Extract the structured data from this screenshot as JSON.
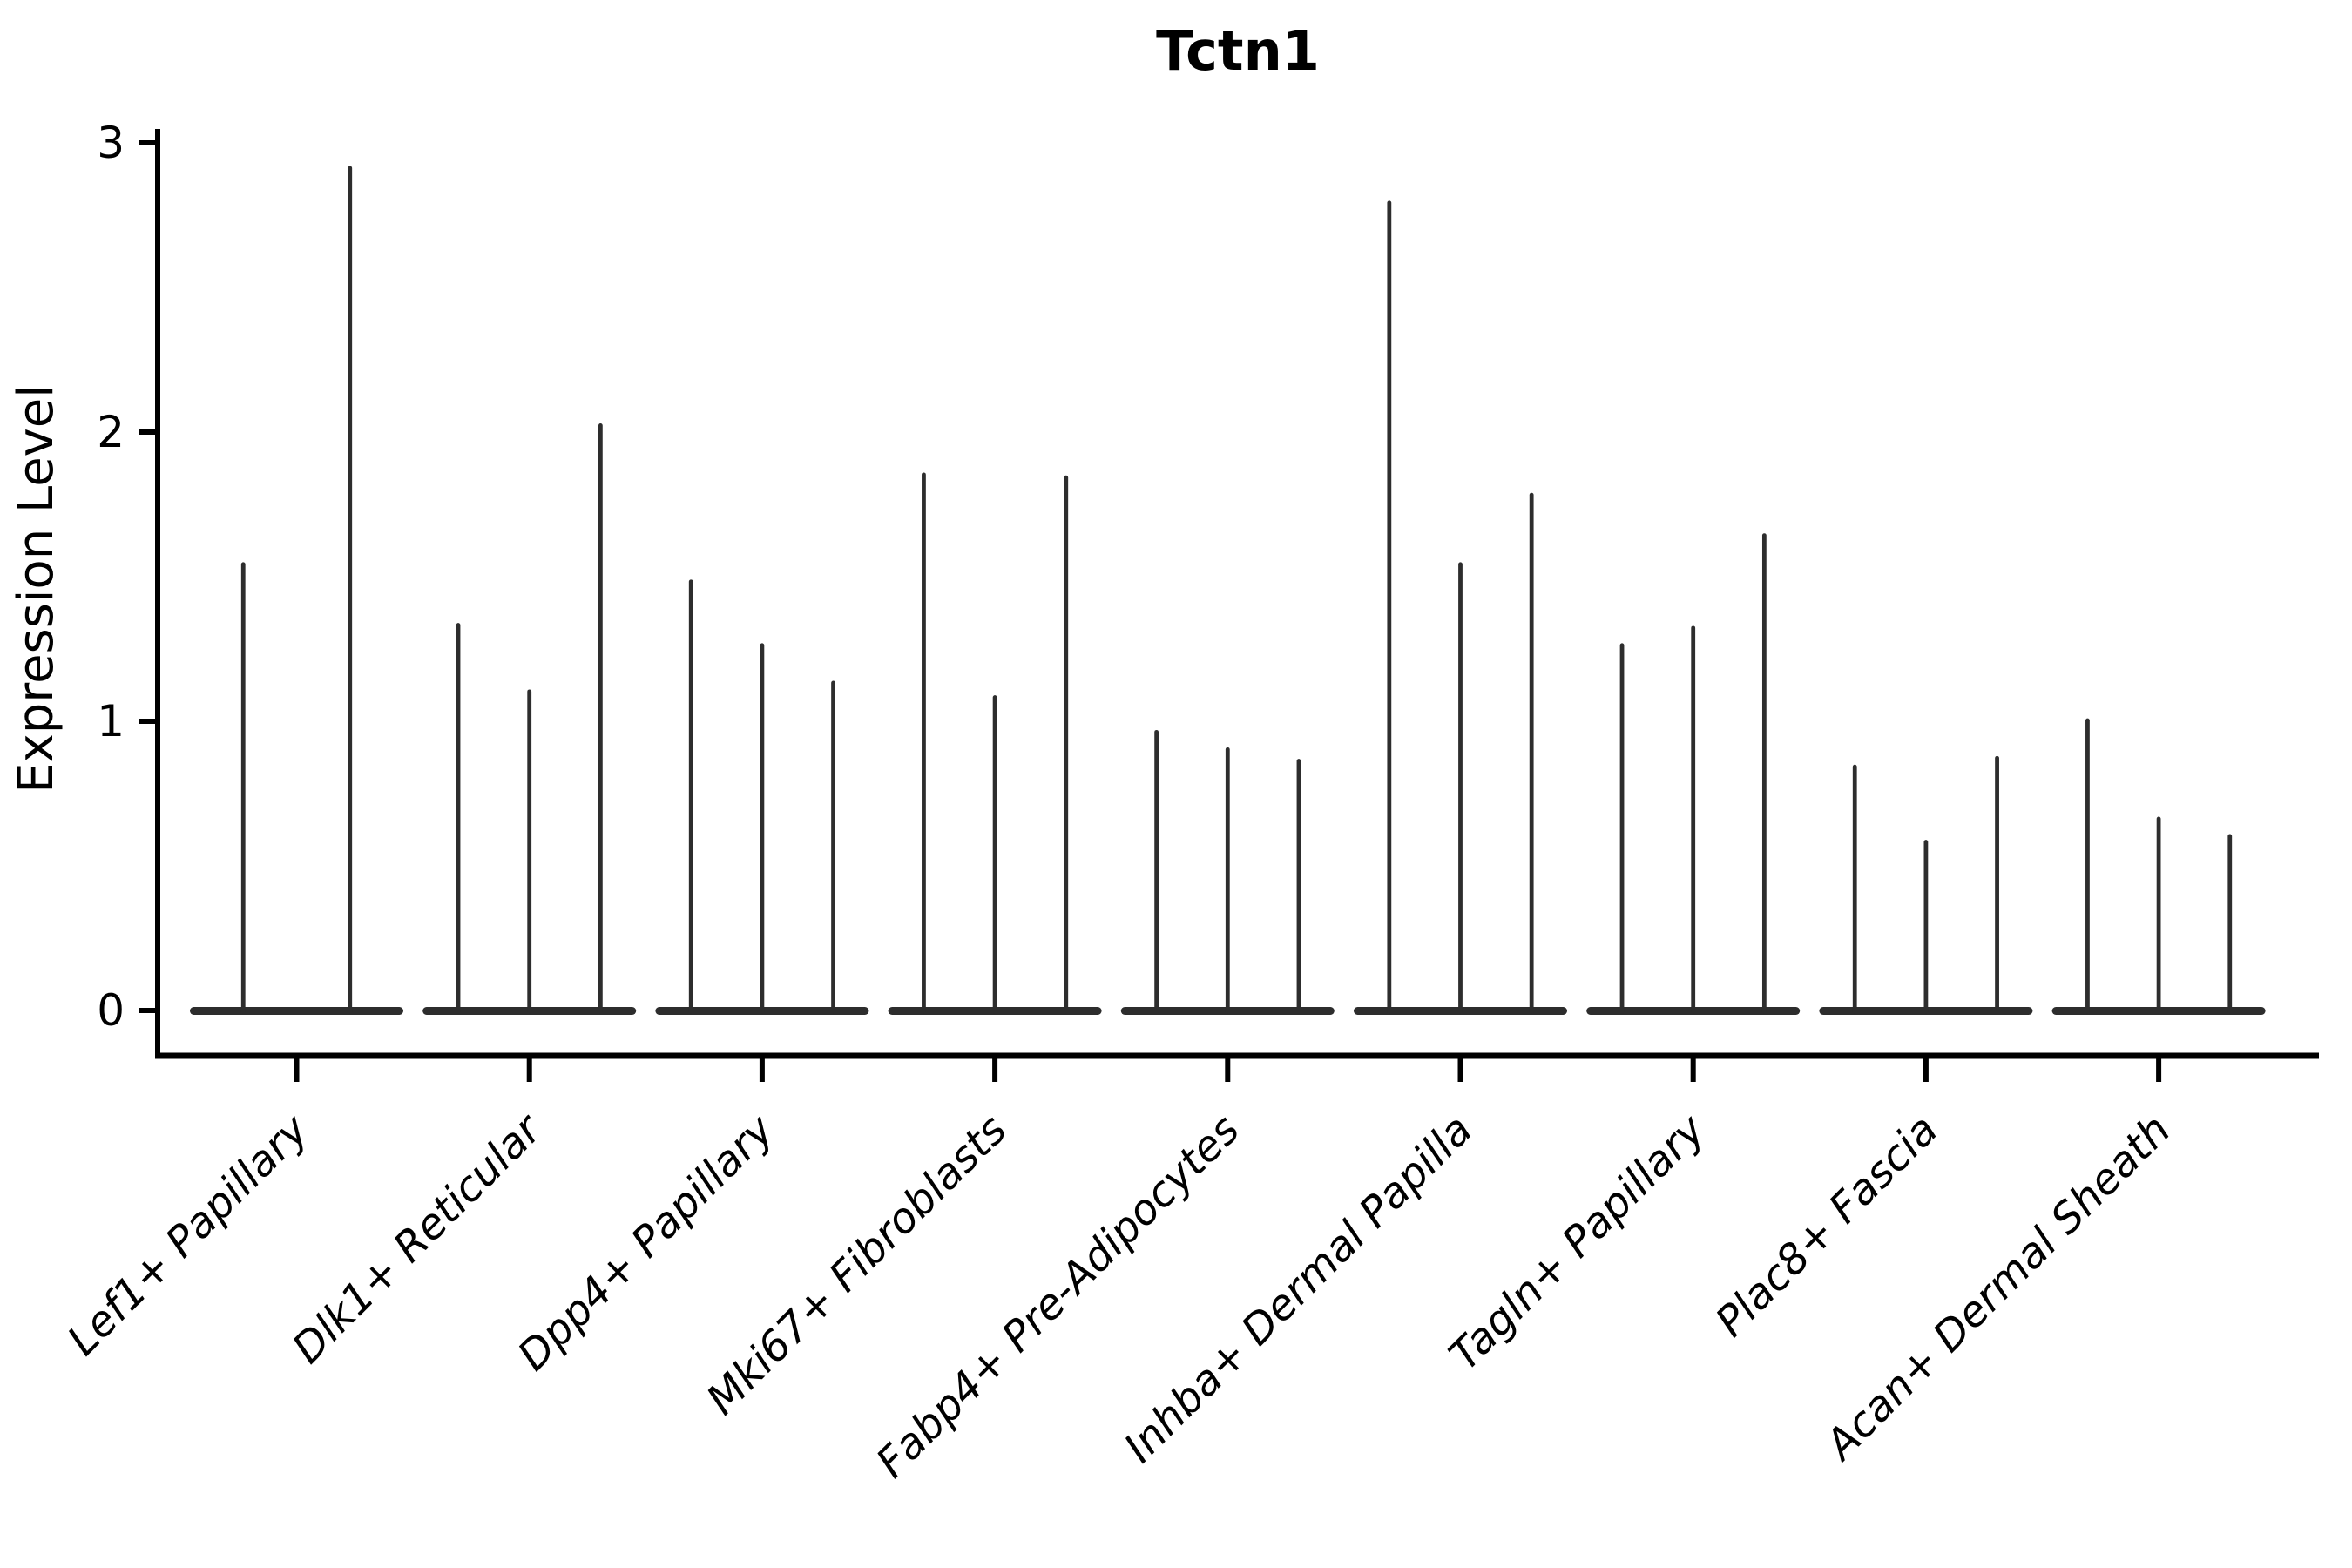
{
  "title": "Tctn1",
  "ylabel": "Expression Level",
  "colors": {
    "background": "#ffffff",
    "axis": "#000000",
    "violin": "#2d2d2d",
    "text": "#000000"
  },
  "chart_data": {
    "type": "violin",
    "title": "Tctn1",
    "xlabel": "",
    "ylabel": "Expression Level",
    "yticks": [
      0,
      1,
      2,
      3
    ],
    "ylim": [
      -0.17,
      3.1
    ],
    "grid": false,
    "legend": "none",
    "note": "Each category holds thin spike-like violins (flat mass at 0 with a narrow spike to the max expression value).",
    "categories": [
      "Lef1+ Papillary",
      "Dlk1+ Reticular",
      "Dpp4+ Papillary",
      "Mki67+ Fibroblasts",
      "Fabp4+ Pre-Adipocytes",
      "Inhba+ Dermal Papilla",
      "Tagln+ Papillary",
      "Plac8+ Fascia",
      "Acan+ Dermal Sheath"
    ],
    "groups": [
      {
        "category": "Lef1+ Papillary",
        "violin_peaks": [
          1.55,
          2.92
        ]
      },
      {
        "category": "Dlk1+ Reticular",
        "violin_peaks": [
          1.34,
          1.11,
          2.03
        ]
      },
      {
        "category": "Dpp4+ Papillary",
        "violin_peaks": [
          1.49,
          1.27,
          1.14
        ]
      },
      {
        "category": "Mki67+ Fibroblasts",
        "violin_peaks": [
          1.86,
          1.09,
          1.85
        ]
      },
      {
        "category": "Fabp4+ Pre-Adipocytes",
        "violin_peaks": [
          0.97,
          0.91,
          0.87
        ]
      },
      {
        "category": "Inhba+ Dermal Papilla",
        "violin_peaks": [
          2.8,
          1.55,
          1.79
        ]
      },
      {
        "category": "Tagln+ Papillary",
        "violin_peaks": [
          1.27,
          1.33,
          1.65
        ]
      },
      {
        "category": "Plac8+ Fascia",
        "violin_peaks": [
          0.85,
          0.59,
          0.88
        ]
      },
      {
        "category": "Acan+ Dermal Sheath",
        "violin_peaks": [
          1.01,
          0.67,
          0.61
        ]
      }
    ]
  }
}
